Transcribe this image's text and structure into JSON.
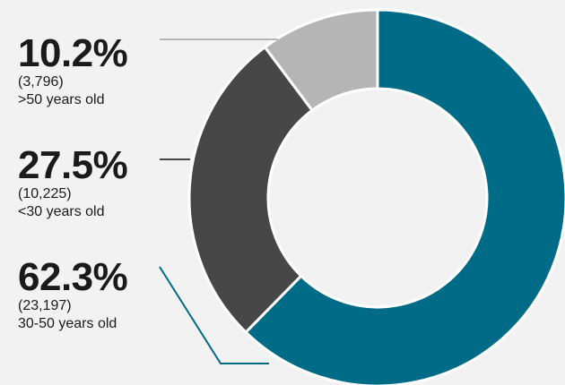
{
  "chart_data": {
    "type": "pie",
    "donut": true,
    "slices": [
      {
        "percent": "62.3%",
        "value": 23197,
        "count_label": "(23,197)",
        "label": "30-50 years old",
        "color": "#006b87"
      },
      {
        "percent": "27.5%",
        "value": 10225,
        "count_label": "(10,225)",
        "label": "<30 years old",
        "color": "#474747"
      },
      {
        "percent": "10.2%",
        "value": 3796,
        "count_label": "(3,796)",
        "label": ">50 years old",
        "color": "#b5b5b5"
      }
    ]
  }
}
